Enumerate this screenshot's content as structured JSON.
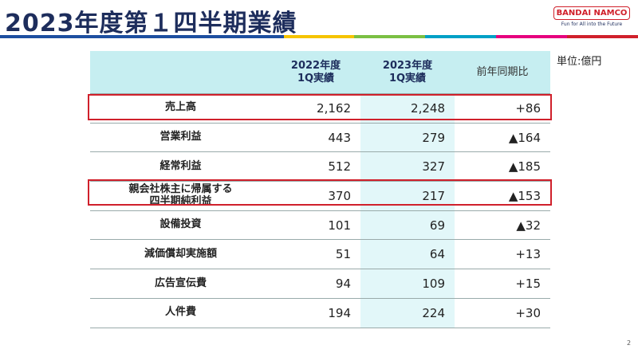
{
  "header": {
    "title": "2023年度第１四半期業績",
    "logo": "BANDAI NAMCO",
    "tagline": "Fun for All into the Future"
  },
  "unit": "単位:億円",
  "table": {
    "columns": [
      "2022年度\n1Q実績",
      "2023年度\n1Q実績",
      "前年同期比"
    ],
    "rows": [
      [
        "売上高",
        "2,162",
        "2,248",
        "+86"
      ],
      [
        "営業利益",
        "443",
        "279",
        "▲164"
      ],
      [
        "経常利益",
        "512",
        "327",
        "▲185"
      ],
      [
        "親会社株主に帰属する\n四半期純利益",
        "370",
        "217",
        "▲153"
      ],
      [
        "設備投資",
        "101",
        "69",
        "▲32"
      ],
      [
        "減価償却実施額",
        "51",
        "64",
        "+13"
      ],
      [
        "広告宣伝費",
        "94",
        "109",
        "+15"
      ],
      [
        "人件費",
        "194",
        "224",
        "+30"
      ]
    ]
  },
  "page_number": "2"
}
